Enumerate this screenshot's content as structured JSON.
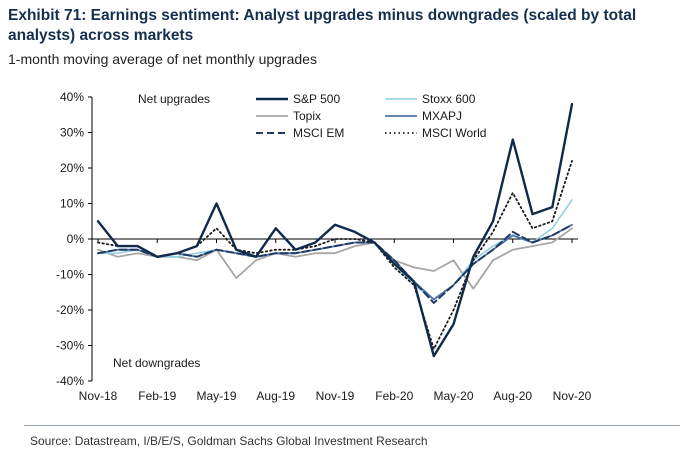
{
  "title": "Exhibit 71: Earnings sentiment: Analyst upgrades minus downgrades (scaled by total analysts) across markets",
  "subtitle": "1-month moving average of net monthly upgrades",
  "source": "Source: Datastream, I/B/E/S, Goldman Sachs Global Investment Research",
  "chart_data": {
    "type": "line",
    "x": [
      "Nov-18",
      "Dec-18",
      "Jan-19",
      "Feb-19",
      "Mar-19",
      "Apr-19",
      "May-19",
      "Jun-19",
      "Jul-19",
      "Aug-19",
      "Sep-19",
      "Oct-19",
      "Nov-19",
      "Dec-19",
      "Jan-20",
      "Feb-20",
      "Mar-20",
      "Apr-20",
      "May-20",
      "Jun-20",
      "Jul-20",
      "Aug-20",
      "Sep-20",
      "Oct-20",
      "Nov-20"
    ],
    "x_tick_labels": [
      "Nov-18",
      "Feb-19",
      "May-19",
      "Aug-19",
      "Nov-19",
      "Feb-20",
      "May-20",
      "Aug-20",
      "Nov-20"
    ],
    "ylim": [
      -40,
      40
    ],
    "y_ticks": [
      -40,
      -30,
      -20,
      -10,
      0,
      10,
      20,
      30,
      40
    ],
    "y_tick_labels": [
      "-40%",
      "-30%",
      "-20%",
      "-10%",
      "0%",
      "10%",
      "20%",
      "30%",
      "40%"
    ],
    "annotations": {
      "top": "Net upgrades",
      "bottom": "Net downgrades"
    },
    "legend_position": "top-right",
    "grid": false,
    "series": [
      {
        "name": "S&P 500",
        "color": "#0f2a4a",
        "dash": "solid",
        "width": 2.4,
        "values": [
          5,
          -2,
          -2,
          -5,
          -4,
          -2,
          10,
          -3,
          -5,
          3,
          -3,
          -1,
          4,
          2,
          -1,
          -7,
          -12,
          -33,
          -24,
          -5,
          5,
          28,
          7,
          9,
          38
        ]
      },
      {
        "name": "Stoxx 600",
        "color": "#8ecfe3",
        "dash": "solid",
        "width": 1.5,
        "values": [
          -4,
          -4,
          -3,
          -5,
          -5,
          -4,
          -3,
          -4,
          -5,
          -4,
          -4,
          -3,
          -2,
          -1,
          -1,
          -7,
          -13,
          -17,
          -13,
          -6,
          -2,
          1,
          -1,
          3,
          11
        ]
      },
      {
        "name": "Topix",
        "color": "#a6a6a6",
        "dash": "solid",
        "width": 1.8,
        "values": [
          -3,
          -5,
          -4,
          -5,
          -5,
          -6,
          -3,
          -11,
          -6,
          -4,
          -5,
          -4,
          -4,
          -2,
          -1,
          -6,
          -8,
          -9,
          -6,
          -14,
          -6,
          -3,
          -2,
          -1,
          3
        ]
      },
      {
        "name": "MXAPJ",
        "color": "#4f73a8",
        "dash": "solid",
        "width": 1.8,
        "values": [
          -4,
          -3,
          -3,
          -5,
          -4,
          -5,
          -3,
          -4,
          -5,
          -4,
          -4,
          -3,
          -2,
          -1,
          -1,
          -6,
          -12,
          -17,
          -13,
          -7,
          -3,
          1,
          -1,
          1,
          4
        ]
      },
      {
        "name": "MSCI EM",
        "color": "#1f3a63",
        "dash": "7,4",
        "width": 2,
        "values": [
          -4,
          -3,
          -3,
          -5,
          -4,
          -5,
          -3,
          -4,
          -5,
          -4,
          -4,
          -3,
          -2,
          -1,
          -1,
          -6,
          -12,
          -18,
          -13,
          -7,
          -3,
          2,
          -1,
          1,
          4
        ]
      },
      {
        "name": "MSCI World",
        "color": "#1a1a1a",
        "dash": "1.5,3",
        "width": 1.8,
        "values": [
          -1,
          -2,
          -2,
          -5,
          -4,
          -2,
          3,
          -3,
          -4,
          -3,
          -3,
          -2,
          0,
          0,
          -1,
          -8,
          -13,
          -31,
          -20,
          -6,
          2,
          13,
          3,
          5,
          22
        ]
      }
    ]
  }
}
